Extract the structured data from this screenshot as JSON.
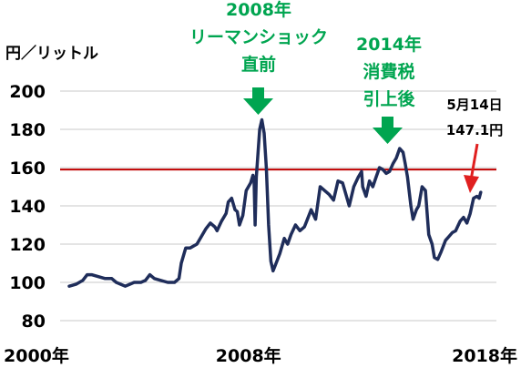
{
  "chart_data": {
    "type": "line",
    "title": "",
    "xlabel": "",
    "ylabel": "円／リットル",
    "ylim": [
      80,
      200
    ],
    "y_ticks": [
      80,
      100,
      120,
      140,
      160,
      180,
      200
    ],
    "x_tick_labels": [
      "2000年",
      "2008年",
      "2018年"
    ],
    "x_tick_years": [
      2000,
      2008,
      2018
    ],
    "xlim": [
      2000,
      2018.5
    ],
    "grid": true,
    "reference_line": {
      "value": 159,
      "color": "#c00000"
    },
    "series": [
      {
        "color": "#1f2d5a",
        "points": [
          [
            2000.0,
            98
          ],
          [
            2000.3,
            99
          ],
          [
            2000.6,
            101
          ],
          [
            2000.8,
            104
          ],
          [
            2001.0,
            104
          ],
          [
            2001.3,
            103
          ],
          [
            2001.6,
            102
          ],
          [
            2001.9,
            102
          ],
          [
            2002.1,
            100
          ],
          [
            2002.3,
            99
          ],
          [
            2002.5,
            98
          ],
          [
            2002.7,
            99
          ],
          [
            2002.9,
            100
          ],
          [
            2003.2,
            100
          ],
          [
            2003.4,
            101
          ],
          [
            2003.6,
            104
          ],
          [
            2003.8,
            102
          ],
          [
            2004.1,
            101
          ],
          [
            2004.4,
            100
          ],
          [
            2004.7,
            100
          ],
          [
            2004.9,
            102
          ],
          [
            2005.0,
            110
          ],
          [
            2005.2,
            118
          ],
          [
            2005.4,
            118
          ],
          [
            2005.7,
            120
          ],
          [
            2005.9,
            124
          ],
          [
            2006.1,
            128
          ],
          [
            2006.3,
            131
          ],
          [
            2006.5,
            129
          ],
          [
            2006.6,
            127
          ],
          [
            2006.8,
            132
          ],
          [
            2007.0,
            136
          ],
          [
            2007.1,
            142
          ],
          [
            2007.25,
            144
          ],
          [
            2007.4,
            138
          ],
          [
            2007.5,
            137
          ],
          [
            2007.6,
            130
          ],
          [
            2007.75,
            135
          ],
          [
            2007.9,
            148
          ],
          [
            2008.1,
            152
          ],
          [
            2008.2,
            156
          ],
          [
            2008.25,
            154
          ],
          [
            2008.3,
            130
          ],
          [
            2008.35,
            155
          ],
          [
            2008.5,
            180
          ],
          [
            2008.6,
            185
          ],
          [
            2008.7,
            178
          ],
          [
            2008.8,
            160
          ],
          [
            2008.9,
            130
          ],
          [
            2009.0,
            111
          ],
          [
            2009.1,
            106
          ],
          [
            2009.2,
            109
          ],
          [
            2009.4,
            115
          ],
          [
            2009.6,
            123
          ],
          [
            2009.75,
            120
          ],
          [
            2009.9,
            125
          ],
          [
            2010.1,
            130
          ],
          [
            2010.3,
            127
          ],
          [
            2010.5,
            129
          ],
          [
            2010.6,
            132
          ],
          [
            2010.8,
            138
          ],
          [
            2011.0,
            133
          ],
          [
            2011.2,
            150
          ],
          [
            2011.4,
            148
          ],
          [
            2011.6,
            146
          ],
          [
            2011.8,
            143
          ],
          [
            2012.0,
            153
          ],
          [
            2012.2,
            152
          ],
          [
            2012.4,
            144
          ],
          [
            2012.5,
            140
          ],
          [
            2012.7,
            150
          ],
          [
            2012.9,
            155
          ],
          [
            2013.05,
            158
          ],
          [
            2013.1,
            150
          ],
          [
            2013.25,
            145
          ],
          [
            2013.4,
            153
          ],
          [
            2013.55,
            150
          ],
          [
            2013.7,
            155
          ],
          [
            2013.85,
            160
          ],
          [
            2014.0,
            159
          ],
          [
            2014.15,
            157
          ],
          [
            2014.3,
            158
          ],
          [
            2014.45,
            162
          ],
          [
            2014.6,
            165
          ],
          [
            2014.75,
            170
          ],
          [
            2014.9,
            168
          ],
          [
            2015.0,
            162
          ],
          [
            2015.1,
            155
          ],
          [
            2015.25,
            140
          ],
          [
            2015.35,
            133
          ],
          [
            2015.5,
            138
          ],
          [
            2015.6,
            140
          ],
          [
            2015.75,
            150
          ],
          [
            2015.9,
            148
          ],
          [
            2016.05,
            125
          ],
          [
            2016.2,
            120
          ],
          [
            2016.3,
            113
          ],
          [
            2016.45,
            112
          ],
          [
            2016.6,
            116
          ],
          [
            2016.8,
            122
          ],
          [
            2016.95,
            124
          ],
          [
            2017.1,
            126
          ],
          [
            2017.25,
            127
          ],
          [
            2017.45,
            132
          ],
          [
            2017.6,
            134
          ],
          [
            2017.75,
            131
          ],
          [
            2017.9,
            136
          ],
          [
            2018.05,
            144
          ],
          [
            2018.2,
            145
          ],
          [
            2018.3,
            144
          ],
          [
            2018.37,
            147.1
          ]
        ]
      }
    ],
    "annotations": [
      {
        "id": "lehman",
        "lines": [
          "2008年",
          "リーマンショック",
          "直前"
        ],
        "color": "#00a550"
      },
      {
        "id": "tax",
        "lines": [
          "2014年",
          "消費税",
          "引上後"
        ],
        "color": "#00a550"
      },
      {
        "id": "latest",
        "lines": [
          "5月14日",
          "147.1円"
        ],
        "color": "#000000"
      }
    ]
  }
}
